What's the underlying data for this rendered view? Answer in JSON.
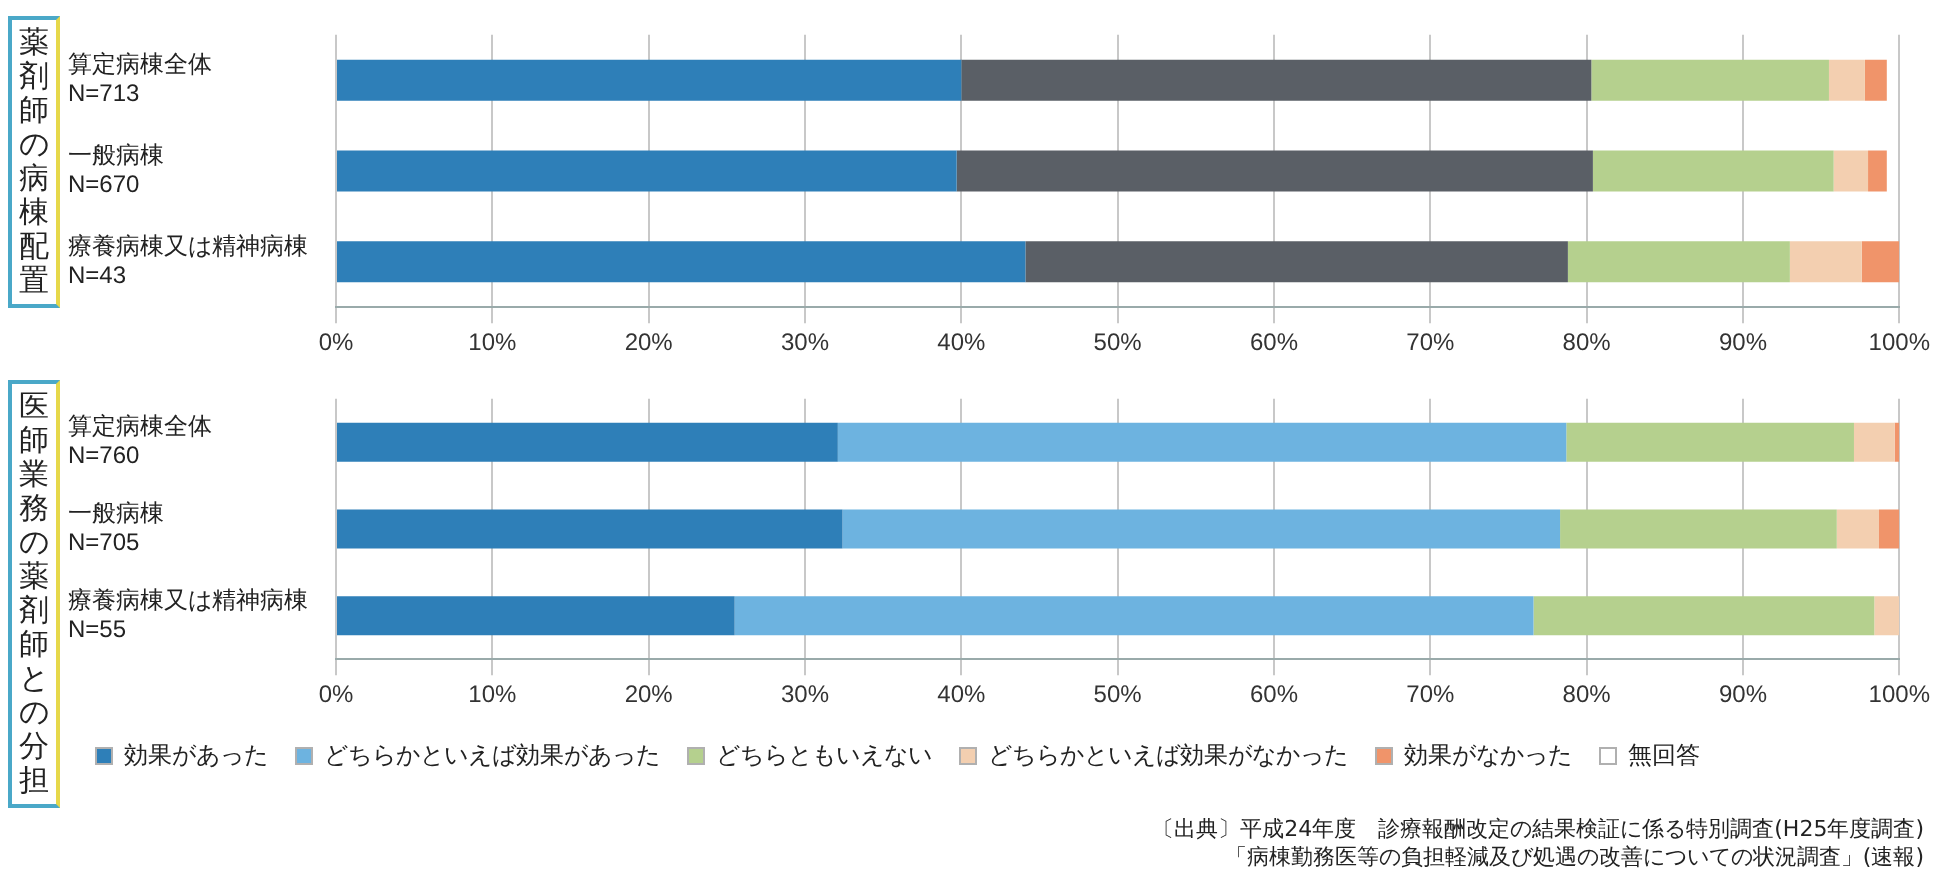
{
  "chart_data": [
    {
      "type": "bar",
      "orientation": "horizontal",
      "stacked": true,
      "ylabel": "薬剤師の病棟配置",
      "categories": [
        "算定病棟全体\nN=713",
        "一般病棟\nN=670",
        "療養病棟又は精神病棟\nN=43"
      ],
      "series": [
        {
          "color": "#2e7fb8",
          "values": [
            40,
            39.7,
            44.1
          ]
        },
        {
          "color": "#5a5f66",
          "values": [
            40.3,
            40.7,
            34.7
          ]
        },
        {
          "color": "#b5d08e",
          "values": [
            15.2,
            15.4,
            14.2
          ]
        },
        {
          "color": "#f3cfb0",
          "values": [
            2.3,
            2.2,
            4.6
          ]
        },
        {
          "color": "#f0946a",
          "values": [
            1.4,
            1.2,
            2.4
          ]
        },
        {
          "color": "#ffffff",
          "values": [
            null,
            null,
            0
          ]
        }
      ],
      "xlim": [
        0,
        100
      ],
      "xticks": [
        {
          "value": 0,
          "label": "0%"
        },
        {
          "value": 10,
          "label": "10%"
        },
        {
          "value": 20,
          "label": "20%"
        },
        {
          "value": 30,
          "label": "30%"
        },
        {
          "value": 40,
          "label": "40%"
        },
        {
          "value": 50,
          "label": "50%"
        },
        {
          "value": 60,
          "label": "60%"
        },
        {
          "value": 70,
          "label": "70%"
        },
        {
          "value": 80,
          "label": "80%"
        },
        {
          "value": 90,
          "label": "90%"
        },
        {
          "value": 100,
          "label": "100%"
        }
      ],
      "grid": "x",
      "legend": false
    },
    {
      "type": "bar",
      "orientation": "horizontal",
      "stacked": true,
      "ylabel": "医師業務の薬剤師との分担",
      "categories": [
        "算定病棟全体\nN=760",
        "一般病棟\nN=705",
        "療養病棟又は精神病棟\nN=55"
      ],
      "series": [
        {
          "name": "効果があった",
          "color": "#2e7fb8",
          "values": [
            32.1,
            32.4,
            25.5
          ]
        },
        {
          "name": "どちらかといえば効果があった",
          "color": "#6db3e0",
          "values": [
            46.6,
            45.9,
            51.1
          ]
        },
        {
          "name": "どちらともいえない",
          "color": "#b5d08e",
          "values": [
            18.4,
            17.7,
            21.8
          ]
        },
        {
          "name": "どちらかといえば効果がなかった",
          "color": "#f3cfb0",
          "values": [
            2.6,
            2.7,
            1.6
          ]
        },
        {
          "name": "効果がなかった",
          "color": "#f0946a",
          "values": [
            0.3,
            1.3,
            0
          ]
        },
        {
          "name": "無回答",
          "color": "#ffffff",
          "values": [
            0,
            0,
            0
          ]
        }
      ],
      "xlim": [
        0,
        100
      ],
      "xticks": [
        {
          "value": 0,
          "label": "0%"
        },
        {
          "value": 10,
          "label": "10%"
        },
        {
          "value": 20,
          "label": "20%"
        },
        {
          "value": 30,
          "label": "30%"
        },
        {
          "value": 40,
          "label": "40%"
        },
        {
          "value": 50,
          "label": "50%"
        },
        {
          "value": 60,
          "label": "60%"
        },
        {
          "value": 70,
          "label": "70%"
        },
        {
          "value": 80,
          "label": "80%"
        },
        {
          "value": 90,
          "label": "90%"
        },
        {
          "value": 100,
          "label": "100%"
        }
      ],
      "grid": "x",
      "legend": "bottom",
      "annotations": [
        "〔出典〕平成24年度　診療報酬改定の結果検証に係る特別調査(H25年度調査)",
        "「病棟勤務医等の負担軽減及び処遇の改善についての状況調査」(速報)"
      ]
    }
  ]
}
